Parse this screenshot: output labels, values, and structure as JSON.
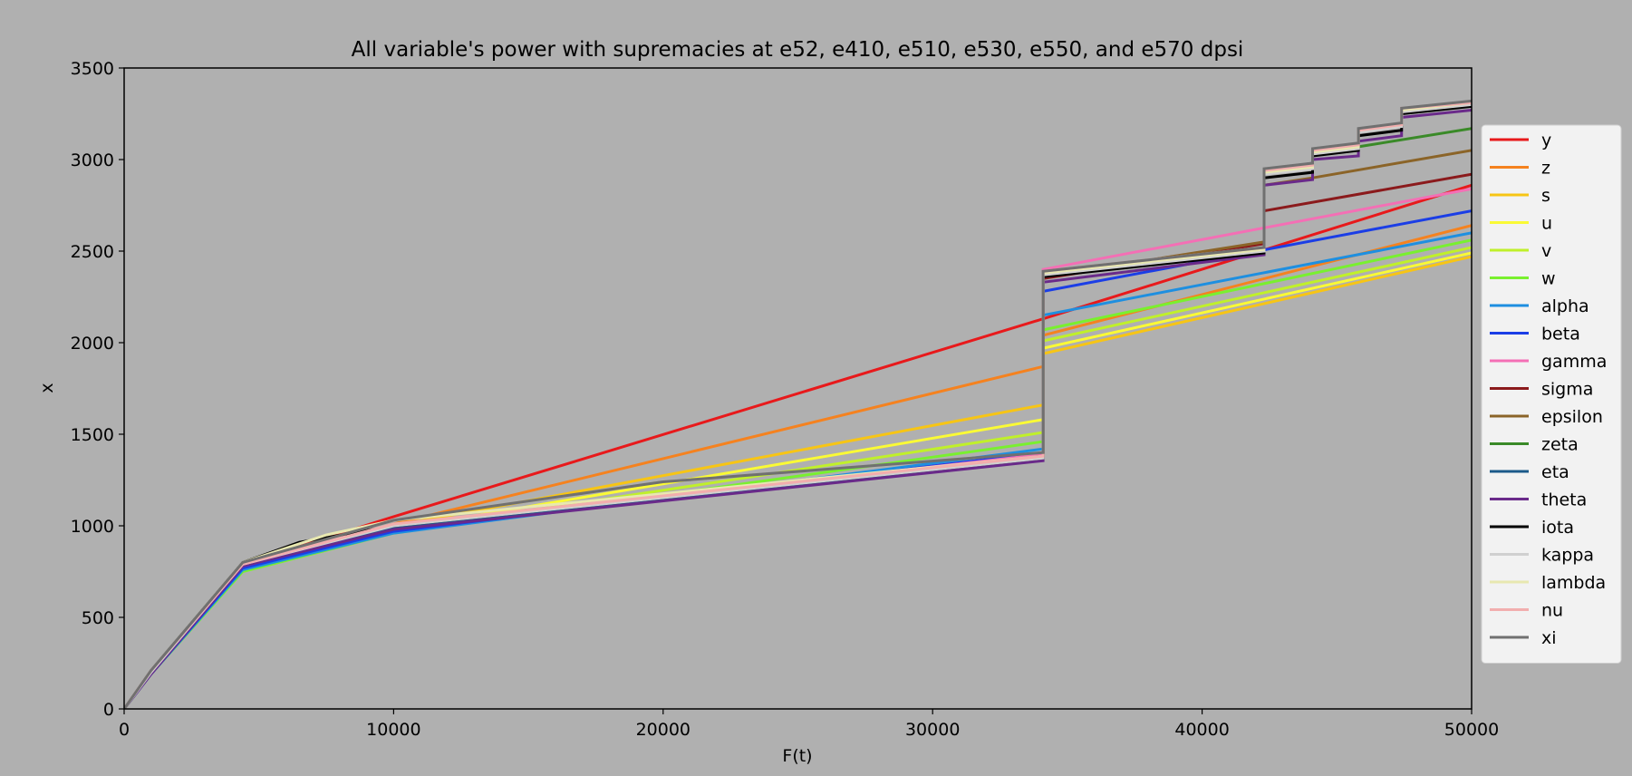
{
  "chart_data": {
    "type": "line",
    "title": "All variable's power with supremacies at e52, e410, e510, e530, e550, and e570 dpsi",
    "xlabel": "F(t)",
    "ylabel": "x",
    "xlim": [
      0,
      50000
    ],
    "ylim": [
      0,
      3500
    ],
    "xticks": [
      0,
      10000,
      20000,
      30000,
      40000,
      50000
    ],
    "yticks": [
      0,
      500,
      1000,
      1500,
      2000,
      2500,
      3000,
      3500
    ],
    "legend_position": "right",
    "grid": false,
    "background": "#b0b0b0",
    "series": [
      {
        "name": "y",
        "color": "#e8191b",
        "points": [
          [
            0,
            0
          ],
          [
            1000,
            200
          ],
          [
            4400,
            790
          ],
          [
            10000,
            1050
          ],
          [
            34100,
            2130
          ],
          [
            50000,
            2860
          ]
        ]
      },
      {
        "name": "z",
        "color": "#f5821f",
        "points": [
          [
            0,
            0
          ],
          [
            1000,
            200
          ],
          [
            4400,
            780
          ],
          [
            10000,
            1010
          ],
          [
            34100,
            1870
          ],
          [
            34100,
            2040
          ],
          [
            50000,
            2640
          ]
        ]
      },
      {
        "name": "s",
        "color": "#f7c515",
        "points": [
          [
            0,
            0
          ],
          [
            1000,
            200
          ],
          [
            4400,
            780
          ],
          [
            10000,
            1000
          ],
          [
            34100,
            1660
          ],
          [
            34100,
            1940
          ],
          [
            50000,
            2470
          ]
        ]
      },
      {
        "name": "u",
        "color": "#fafa35",
        "points": [
          [
            0,
            0
          ],
          [
            1000,
            190
          ],
          [
            4400,
            760
          ],
          [
            10000,
            980
          ],
          [
            34100,
            1580
          ],
          [
            34100,
            1970
          ],
          [
            50000,
            2490
          ]
        ]
      },
      {
        "name": "v",
        "color": "#c0f02a",
        "points": [
          [
            0,
            0
          ],
          [
            1000,
            190
          ],
          [
            4400,
            760
          ],
          [
            10000,
            970
          ],
          [
            34100,
            1510
          ],
          [
            34100,
            2010
          ],
          [
            50000,
            2520
          ]
        ]
      },
      {
        "name": "w",
        "color": "#79f02f",
        "points": [
          [
            0,
            0
          ],
          [
            1000,
            190
          ],
          [
            4400,
            750
          ],
          [
            10000,
            960
          ],
          [
            34100,
            1460
          ],
          [
            34100,
            2070
          ],
          [
            50000,
            2560
          ]
        ]
      },
      {
        "name": "alpha",
        "color": "#1e8fe0",
        "points": [
          [
            0,
            0
          ],
          [
            1000,
            190
          ],
          [
            4400,
            760
          ],
          [
            10000,
            960
          ],
          [
            34100,
            1420
          ],
          [
            34100,
            2150
          ],
          [
            50000,
            2600
          ]
        ]
      },
      {
        "name": "beta",
        "color": "#1b3ee6",
        "points": [
          [
            0,
            0
          ],
          [
            1000,
            190
          ],
          [
            4400,
            770
          ],
          [
            10000,
            970
          ],
          [
            34100,
            1400
          ],
          [
            34100,
            2280
          ],
          [
            50000,
            2720
          ]
        ]
      },
      {
        "name": "gamma",
        "color": "#f46fb5",
        "points": [
          [
            0,
            0
          ],
          [
            1000,
            200
          ],
          [
            4400,
            780
          ],
          [
            10000,
            990
          ],
          [
            34100,
            1390
          ],
          [
            34100,
            2400
          ],
          [
            50000,
            2840
          ]
        ]
      },
      {
        "name": "sigma",
        "color": "#8b1a1c",
        "points": [
          [
            0,
            0
          ],
          [
            1000,
            200
          ],
          [
            4400,
            790
          ],
          [
            10000,
            1000
          ],
          [
            34100,
            1380
          ],
          [
            34100,
            2350
          ],
          [
            42300,
            2540
          ],
          [
            42300,
            2720
          ],
          [
            50000,
            2920
          ]
        ]
      },
      {
        "name": "epsilon",
        "color": "#8b6428",
        "points": [
          [
            0,
            0
          ],
          [
            1000,
            200
          ],
          [
            4400,
            790
          ],
          [
            10000,
            1000
          ],
          [
            34100,
            1380
          ],
          [
            34100,
            2360
          ],
          [
            42300,
            2550
          ],
          [
            42300,
            2860
          ],
          [
            44100,
            2900
          ],
          [
            50000,
            3050
          ]
        ]
      },
      {
        "name": "zeta",
        "color": "#3a8a28",
        "points": [
          [
            0,
            0
          ],
          [
            1000,
            200
          ],
          [
            4400,
            790
          ],
          [
            10000,
            990
          ],
          [
            34100,
            1370
          ],
          [
            34100,
            2370
          ],
          [
            42300,
            2510
          ],
          [
            42300,
            2930
          ],
          [
            44100,
            2970
          ],
          [
            44100,
            3040
          ],
          [
            45800,
            3070
          ],
          [
            50000,
            3170
          ]
        ]
      },
      {
        "name": "eta",
        "color": "#1b5a8a",
        "points": [
          [
            0,
            0
          ],
          [
            1000,
            200
          ],
          [
            4400,
            790
          ],
          [
            10000,
            990
          ],
          [
            34100,
            1370
          ],
          [
            34100,
            2370
          ],
          [
            42300,
            2500
          ],
          [
            42300,
            2940
          ],
          [
            44100,
            2980
          ],
          [
            44100,
            3050
          ],
          [
            45800,
            3080
          ],
          [
            45800,
            3160
          ],
          [
            47400,
            3190
          ],
          [
            47400,
            3270
          ],
          [
            50000,
            3310
          ]
        ]
      },
      {
        "name": "theta",
        "color": "#6a2a8a",
        "points": [
          [
            0,
            0
          ],
          [
            1000,
            190
          ],
          [
            4400,
            780
          ],
          [
            10000,
            980
          ],
          [
            34100,
            1355
          ],
          [
            34100,
            2330
          ],
          [
            42300,
            2480
          ],
          [
            42300,
            2860
          ],
          [
            44100,
            2890
          ],
          [
            44100,
            3000
          ],
          [
            45800,
            3020
          ],
          [
            45800,
            3100
          ],
          [
            47400,
            3130
          ],
          [
            47400,
            3230
          ],
          [
            50000,
            3270
          ]
        ]
      },
      {
        "name": "iota",
        "color": "#000000",
        "points": [
          [
            0,
            0
          ],
          [
            1000,
            210
          ],
          [
            4400,
            800
          ],
          [
            6500,
            910
          ],
          [
            10000,
            1000
          ],
          [
            34100,
            1370
          ],
          [
            34100,
            2360
          ],
          [
            42300,
            2490
          ],
          [
            42300,
            2900
          ],
          [
            44100,
            2930
          ],
          [
            44100,
            3020
          ],
          [
            45800,
            3050
          ],
          [
            45800,
            3130
          ],
          [
            47400,
            3160
          ],
          [
            47400,
            3250
          ],
          [
            50000,
            3290
          ]
        ]
      },
      {
        "name": "kappa",
        "color": "#d0d0d0",
        "points": [
          [
            0,
            0
          ],
          [
            1000,
            200
          ],
          [
            4400,
            790
          ],
          [
            10000,
            1000
          ],
          [
            34100,
            1370
          ],
          [
            34100,
            2370
          ],
          [
            42300,
            2500
          ],
          [
            42300,
            2920
          ],
          [
            44100,
            2950
          ],
          [
            44100,
            3030
          ],
          [
            45800,
            3060
          ],
          [
            45800,
            3150
          ],
          [
            47400,
            3180
          ],
          [
            47400,
            3260
          ],
          [
            50000,
            3300
          ]
        ]
      },
      {
        "name": "lambda",
        "color": "#e8e8b0",
        "points": [
          [
            0,
            0
          ],
          [
            1000,
            210
          ],
          [
            4400,
            800
          ],
          [
            7500,
            950
          ],
          [
            10000,
            1030
          ],
          [
            34100,
            1380
          ],
          [
            34100,
            2380
          ],
          [
            42300,
            2510
          ],
          [
            42300,
            2930
          ],
          [
            44100,
            2960
          ],
          [
            44100,
            3040
          ],
          [
            45800,
            3070
          ],
          [
            45800,
            3160
          ],
          [
            47400,
            3190
          ],
          [
            47400,
            3270
          ],
          [
            50000,
            3310
          ]
        ]
      },
      {
        "name": "nu",
        "color": "#f2aeae",
        "points": [
          [
            0,
            0
          ],
          [
            1000,
            210
          ],
          [
            4400,
            790
          ],
          [
            10000,
            1010
          ],
          [
            34100,
            1380
          ],
          [
            34100,
            2390
          ],
          [
            42300,
            2520
          ],
          [
            42300,
            2940
          ],
          [
            44100,
            2970
          ],
          [
            44100,
            3050
          ],
          [
            45800,
            3080
          ],
          [
            45800,
            3160
          ],
          [
            47400,
            3190
          ],
          [
            47400,
            3280
          ],
          [
            50000,
            3310
          ]
        ]
      },
      {
        "name": "xi",
        "color": "#707070",
        "points": [
          [
            0,
            0
          ],
          [
            1000,
            210
          ],
          [
            4400,
            800
          ],
          [
            10000,
            1030
          ],
          [
            20000,
            1240
          ],
          [
            34100,
            1400
          ],
          [
            34100,
            2390
          ],
          [
            42300,
            2520
          ],
          [
            42300,
            2950
          ],
          [
            44100,
            2980
          ],
          [
            44100,
            3060
          ],
          [
            45800,
            3090
          ],
          [
            45800,
            3170
          ],
          [
            47400,
            3200
          ],
          [
            47400,
            3280
          ],
          [
            50000,
            3320
          ]
        ]
      }
    ]
  }
}
